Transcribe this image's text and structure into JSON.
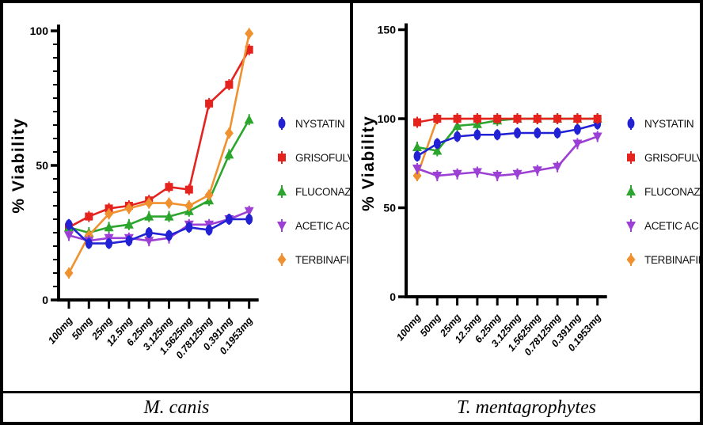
{
  "chart_data": [
    {
      "type": "line",
      "title": "M. canis",
      "ylabel": "% Viability",
      "ylim": [
        0,
        100
      ],
      "yticks": [
        0,
        50,
        100
      ],
      "minor_tick_step": 5,
      "grid": false,
      "legend_position": "right",
      "categories": [
        "100mg",
        "50mg",
        "25mg",
        "12.5mg",
        "6.25mg",
        "3.125mg",
        "1.5625mg",
        "0.78125mg",
        "0.391mg",
        "0.1953mg"
      ],
      "series": [
        {
          "name": "NYSTATIN",
          "color": "#2222d4",
          "marker": "ellipse",
          "values": [
            28,
            21,
            21,
            22,
            25,
            24,
            27,
            26,
            30,
            30
          ]
        },
        {
          "name": "GRISOFULVIN",
          "color": "#e4231f",
          "marker": "square",
          "values": [
            27,
            31,
            34,
            35,
            37,
            42,
            41,
            73,
            80,
            93
          ]
        },
        {
          "name": "FLUCONAZOLE",
          "color": "#2ca52e",
          "marker": "triangle-up",
          "values": [
            27,
            25,
            27,
            28,
            31,
            31,
            33,
            37,
            54,
            67
          ]
        },
        {
          "name": "ACETIC ACID",
          "color": "#9c3fd4",
          "marker": "triangle-down",
          "values": [
            24,
            22,
            23,
            23,
            22,
            23,
            28,
            28,
            30,
            33
          ]
        },
        {
          "name": "TERBINAFINE",
          "color": "#ef912e",
          "marker": "diamond",
          "values": [
            10,
            24,
            32,
            34,
            36,
            36,
            35,
            39,
            62,
            99
          ]
        }
      ],
      "draw_order": [
        1,
        2,
        4,
        3,
        0
      ]
    },
    {
      "type": "line",
      "title": "T. mentagrophytes",
      "ylabel": "% Viability",
      "ylim": [
        0,
        150
      ],
      "yticks": [
        0,
        50,
        100,
        150
      ],
      "minor_tick_step": 0,
      "grid": false,
      "legend_position": "right",
      "categories": [
        "100mg",
        "50mg",
        "25mg",
        "12.5mg",
        "6.25mg",
        "3.125mg",
        "1.5625mg",
        "0.78125mg",
        "0.391mg",
        "0.1953mg"
      ],
      "series": [
        {
          "name": "NYSTATIN",
          "color": "#2222d4",
          "marker": "ellipse",
          "values": [
            79,
            86,
            90,
            91,
            91,
            92,
            92,
            92,
            94,
            97
          ]
        },
        {
          "name": "GRISOFULVIN",
          "color": "#e4231f",
          "marker": "square",
          "values": [
            98,
            100,
            100,
            100,
            100,
            100,
            100,
            100,
            100,
            100
          ]
        },
        {
          "name": "FLUCONAZOLE",
          "color": "#2ca52e",
          "marker": "triangle-up",
          "values": [
            84,
            82,
            96,
            97,
            99,
            100,
            100,
            100,
            100,
            100
          ]
        },
        {
          "name": "ACETIC ACID",
          "color": "#9c3fd4",
          "marker": "triangle-down",
          "values": [
            72,
            68,
            69,
            70,
            68,
            69,
            71,
            73,
            86,
            90
          ]
        },
        {
          "name": "TERBINAFINE",
          "color": "#ef912e",
          "marker": "diamond",
          "values": [
            68,
            100,
            100,
            100,
            100,
            100,
            100,
            100,
            100,
            100
          ]
        }
      ],
      "draw_order": [
        4,
        2,
        3,
        0,
        1
      ]
    }
  ]
}
